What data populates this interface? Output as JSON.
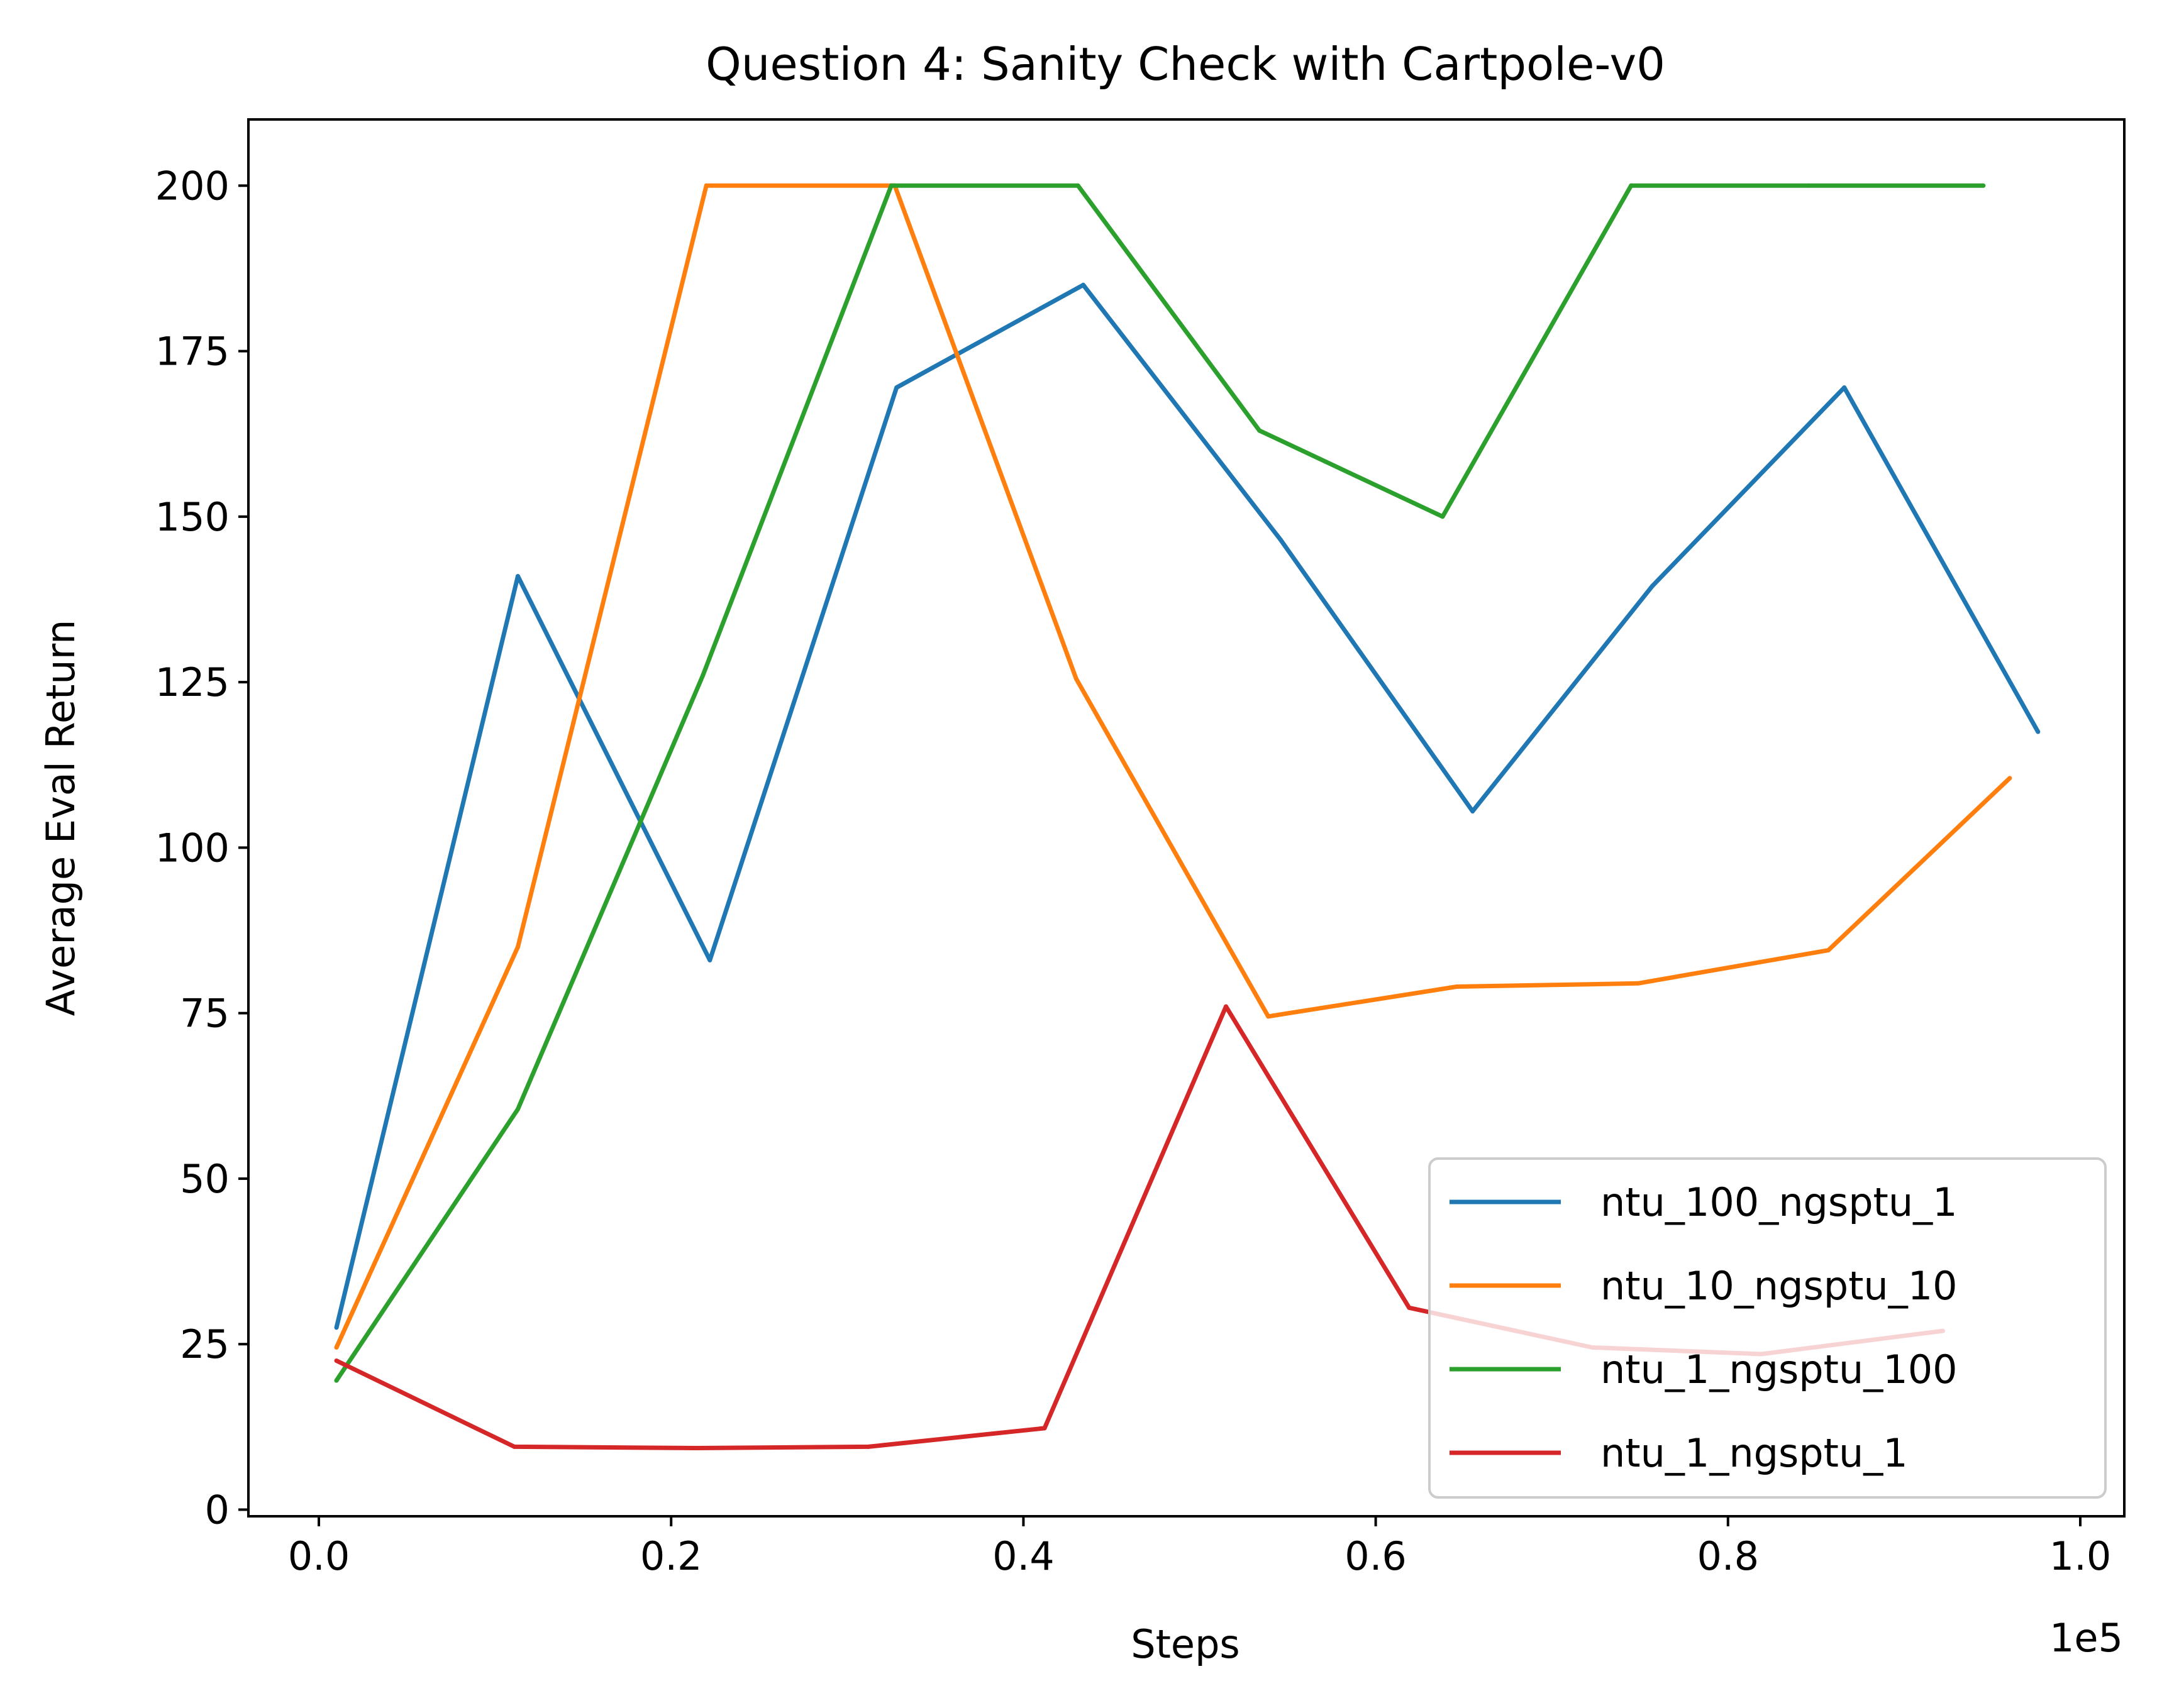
{
  "chart_data": {
    "type": "line",
    "title": "Question 4: Sanity Check with Cartpole-v0",
    "xlabel": "Steps",
    "ylabel": "Average Eval Return",
    "x_offset_label": "1e5",
    "xlim": [
      -0.04,
      1.025
    ],
    "ylim": [
      -1,
      210
    ],
    "x_ticks": [
      0.0,
      0.2,
      0.4,
      0.6,
      0.8,
      1.0
    ],
    "x_tick_labels": [
      "0.0",
      "0.2",
      "0.4",
      "0.6",
      "0.8",
      "1.0"
    ],
    "y_ticks": [
      0,
      25,
      50,
      75,
      100,
      125,
      150,
      175,
      200
    ],
    "y_tick_labels": [
      "0",
      "25",
      "50",
      "75",
      "100",
      "125",
      "150",
      "175",
      "200"
    ],
    "grid": false,
    "legend_position": "lower-right",
    "series": [
      {
        "name": "ntu_100_ngsptu_1",
        "color": "#1f77b4",
        "x": [
          0.01,
          0.113,
          0.222,
          0.328,
          0.434,
          0.546,
          0.655,
          0.757,
          0.866,
          0.976
        ],
        "y": [
          27.5,
          141,
          83,
          169.5,
          185,
          146.5,
          105.5,
          139.5,
          169.5,
          117.5
        ]
      },
      {
        "name": "ntu_10_ngsptu_10",
        "color": "#ff7f0e",
        "x": [
          0.01,
          0.113,
          0.22,
          0.327,
          0.43,
          0.539,
          0.646,
          0.749,
          0.857,
          0.96
        ],
        "y": [
          24.5,
          85,
          200,
          200,
          125.5,
          74.5,
          79,
          79.5,
          84.5,
          110.5
        ]
      },
      {
        "name": "ntu_1_ngsptu_100",
        "color": "#2ca02c",
        "x": [
          0.01,
          0.113,
          0.218,
          0.325,
          0.431,
          0.534,
          0.638,
          0.745,
          0.846,
          0.945
        ],
        "y": [
          19.5,
          60.5,
          126,
          200,
          200,
          163,
          150,
          200,
          200,
          200
        ]
      },
      {
        "name": "ntu_1_ngsptu_1",
        "color": "#d62728",
        "x": [
          0.01,
          0.111,
          0.214,
          0.312,
          0.412,
          0.515,
          0.619,
          0.723,
          0.819,
          0.922
        ],
        "y": [
          22.5,
          9.5,
          9.3,
          9.5,
          12.3,
          76,
          30.5,
          24.5,
          23.5,
          27
        ]
      }
    ]
  }
}
